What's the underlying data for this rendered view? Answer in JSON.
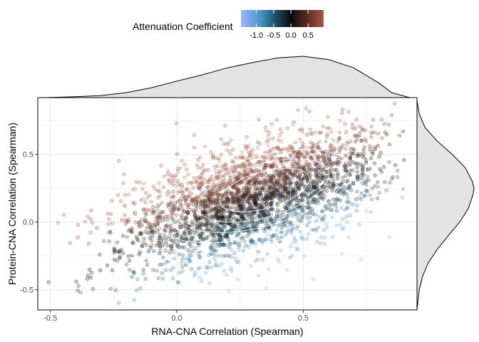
{
  "chart_data": {
    "type": "scatter",
    "title": "",
    "xlabel": "RNA-CNA Correlation (Spearman)",
    "ylabel": "Protein-CNA Correlation (Spearman)",
    "xlim": [
      -0.55,
      0.95
    ],
    "ylim": [
      -0.65,
      0.92
    ],
    "x_ticks": [
      -0.5,
      0.0,
      0.5
    ],
    "x_tick_labels": [
      "-0.5",
      "0.0",
      "0.5"
    ],
    "y_ticks": [
      -0.5,
      0.0,
      0.5
    ],
    "y_tick_labels": [
      "-0.5",
      "0.0",
      "0.5"
    ],
    "grid": true,
    "point_alpha": 0.25,
    "legend": {
      "title": "Attenuation Coefficient",
      "placement": "top",
      "range": [
        -1.45,
        0.95
      ],
      "ticks": [
        -1.0,
        -0.5,
        0.0,
        0.5
      ],
      "tick_labels": [
        "-1.0",
        "-0.5",
        "0.0",
        "0.5"
      ],
      "colormap": [
        {
          "value": -1.45,
          "color": "#9db4ff"
        },
        {
          "value": -0.9,
          "color": "#4a9ac6"
        },
        {
          "value": -0.45,
          "color": "#1f4f68"
        },
        {
          "value": 0.0,
          "color": "#0b0b0b"
        },
        {
          "value": 0.45,
          "color": "#5a2a1e"
        },
        {
          "value": 0.95,
          "color": "#a65a45"
        }
      ]
    },
    "correlation_center": {
      "x": 0.38,
      "y": 0.24
    },
    "contour_levels_shown": 6,
    "marginal_density_x": {
      "x": [
        -0.52,
        -0.4,
        -0.3,
        -0.2,
        -0.1,
        0.0,
        0.1,
        0.2,
        0.3,
        0.4,
        0.5,
        0.6,
        0.7,
        0.8,
        0.85,
        0.92
      ],
      "density": [
        0.0,
        0.02,
        0.05,
        0.12,
        0.24,
        0.4,
        0.55,
        0.72,
        0.85,
        0.96,
        1.0,
        0.92,
        0.72,
        0.35,
        0.12,
        0.0
      ]
    },
    "marginal_density_y": {
      "y": [
        -0.65,
        -0.5,
        -0.4,
        -0.3,
        -0.2,
        -0.1,
        0.0,
        0.1,
        0.2,
        0.25,
        0.3,
        0.4,
        0.5,
        0.6,
        0.7,
        0.8,
        0.9
      ],
      "density": [
        0.0,
        0.04,
        0.1,
        0.2,
        0.36,
        0.55,
        0.75,
        0.9,
        0.98,
        1.0,
        0.97,
        0.85,
        0.62,
        0.35,
        0.14,
        0.04,
        0.0
      ]
    },
    "colors": {
      "grid": "#ebebeb",
      "panel_border": "#000000",
      "contour": "#ffffff",
      "density_fill": "#e3e3e3"
    }
  }
}
